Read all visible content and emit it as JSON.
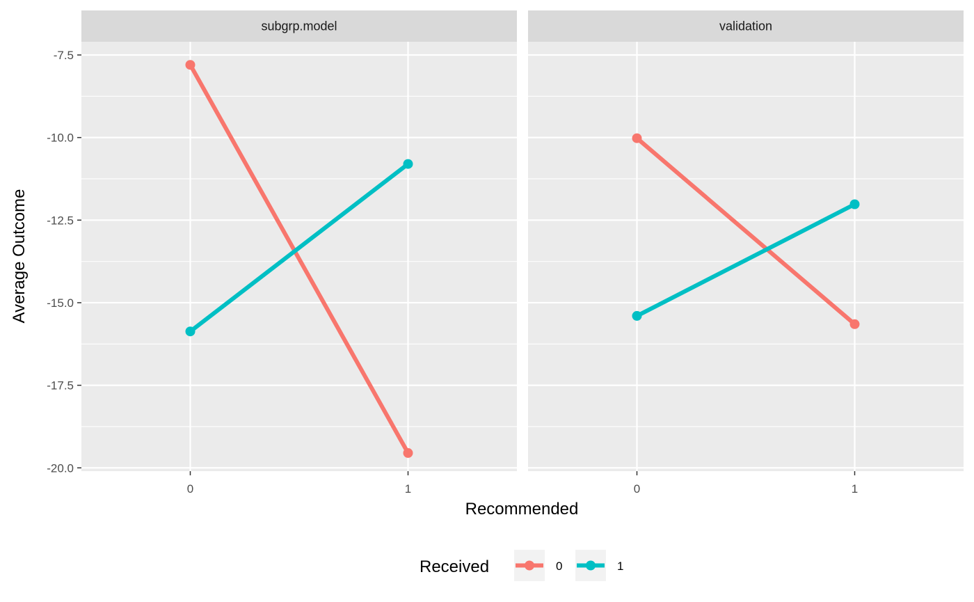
{
  "chart_data": {
    "type": "line",
    "xlabel": "Recommended",
    "ylabel": "Average Outcome",
    "x_categories": [
      "0",
      "1"
    ],
    "ylim": [
      -20.1,
      -7.1
    ],
    "y_ticks": [
      -7.5,
      -10.0,
      -12.5,
      -15.0,
      -17.5,
      -20.0
    ],
    "y_tick_labels": [
      "-7.5",
      "-10.0",
      "-12.5",
      "-15.0",
      "-17.5",
      "-20.0"
    ],
    "grid": true,
    "legend": {
      "title": "Received",
      "position": "bottom",
      "entries": [
        {
          "label": "0",
          "color": "#F8766D"
        },
        {
          "label": "1",
          "color": "#00BFC4"
        }
      ]
    },
    "facets": [
      {
        "title": "subgrp.model",
        "series": [
          {
            "name": "0",
            "color": "#F8766D",
            "values": [
              -7.8,
              -19.55
            ]
          },
          {
            "name": "1",
            "color": "#00BFC4",
            "values": [
              -15.87,
              -10.8
            ]
          }
        ]
      },
      {
        "title": "validation",
        "series": [
          {
            "name": "0",
            "color": "#F8766D",
            "values": [
              -10.02,
              -15.65
            ]
          },
          {
            "name": "1",
            "color": "#00BFC4",
            "values": [
              -15.4,
              -12.02
            ]
          }
        ]
      }
    ]
  }
}
